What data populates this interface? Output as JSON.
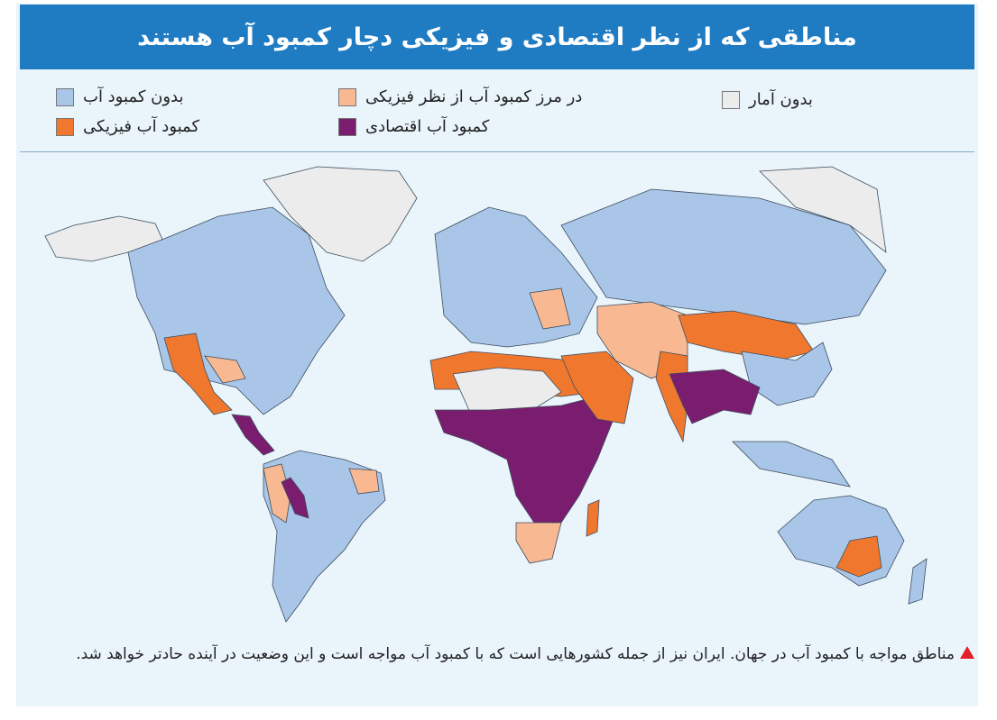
{
  "header": {
    "title": "مناطقی که از نظر اقتصادی و فیزیکی دچار کمبود آب هستند"
  },
  "legend": {
    "items": [
      {
        "label": "بدون کمبود آب",
        "color": "#a9c6e8"
      },
      {
        "label": "کمبود آب فیزیکی",
        "color": "#f0782e"
      },
      {
        "label": "در مرز کمبود آب از نظر فیزیکی",
        "color": "#f8b992"
      },
      {
        "label": "کمبود آب اقتصادی",
        "color": "#7a1d6f"
      },
      {
        "label": "بدون آمار",
        "color": "#ececec"
      }
    ]
  },
  "caption": "مناطق مواجه با کمبود آب در جهان. ایران نیز از جمله کشورهایی است که با کمبود آب مواجه است و این وضعیت در آینده حادتر خواهد شد."
}
